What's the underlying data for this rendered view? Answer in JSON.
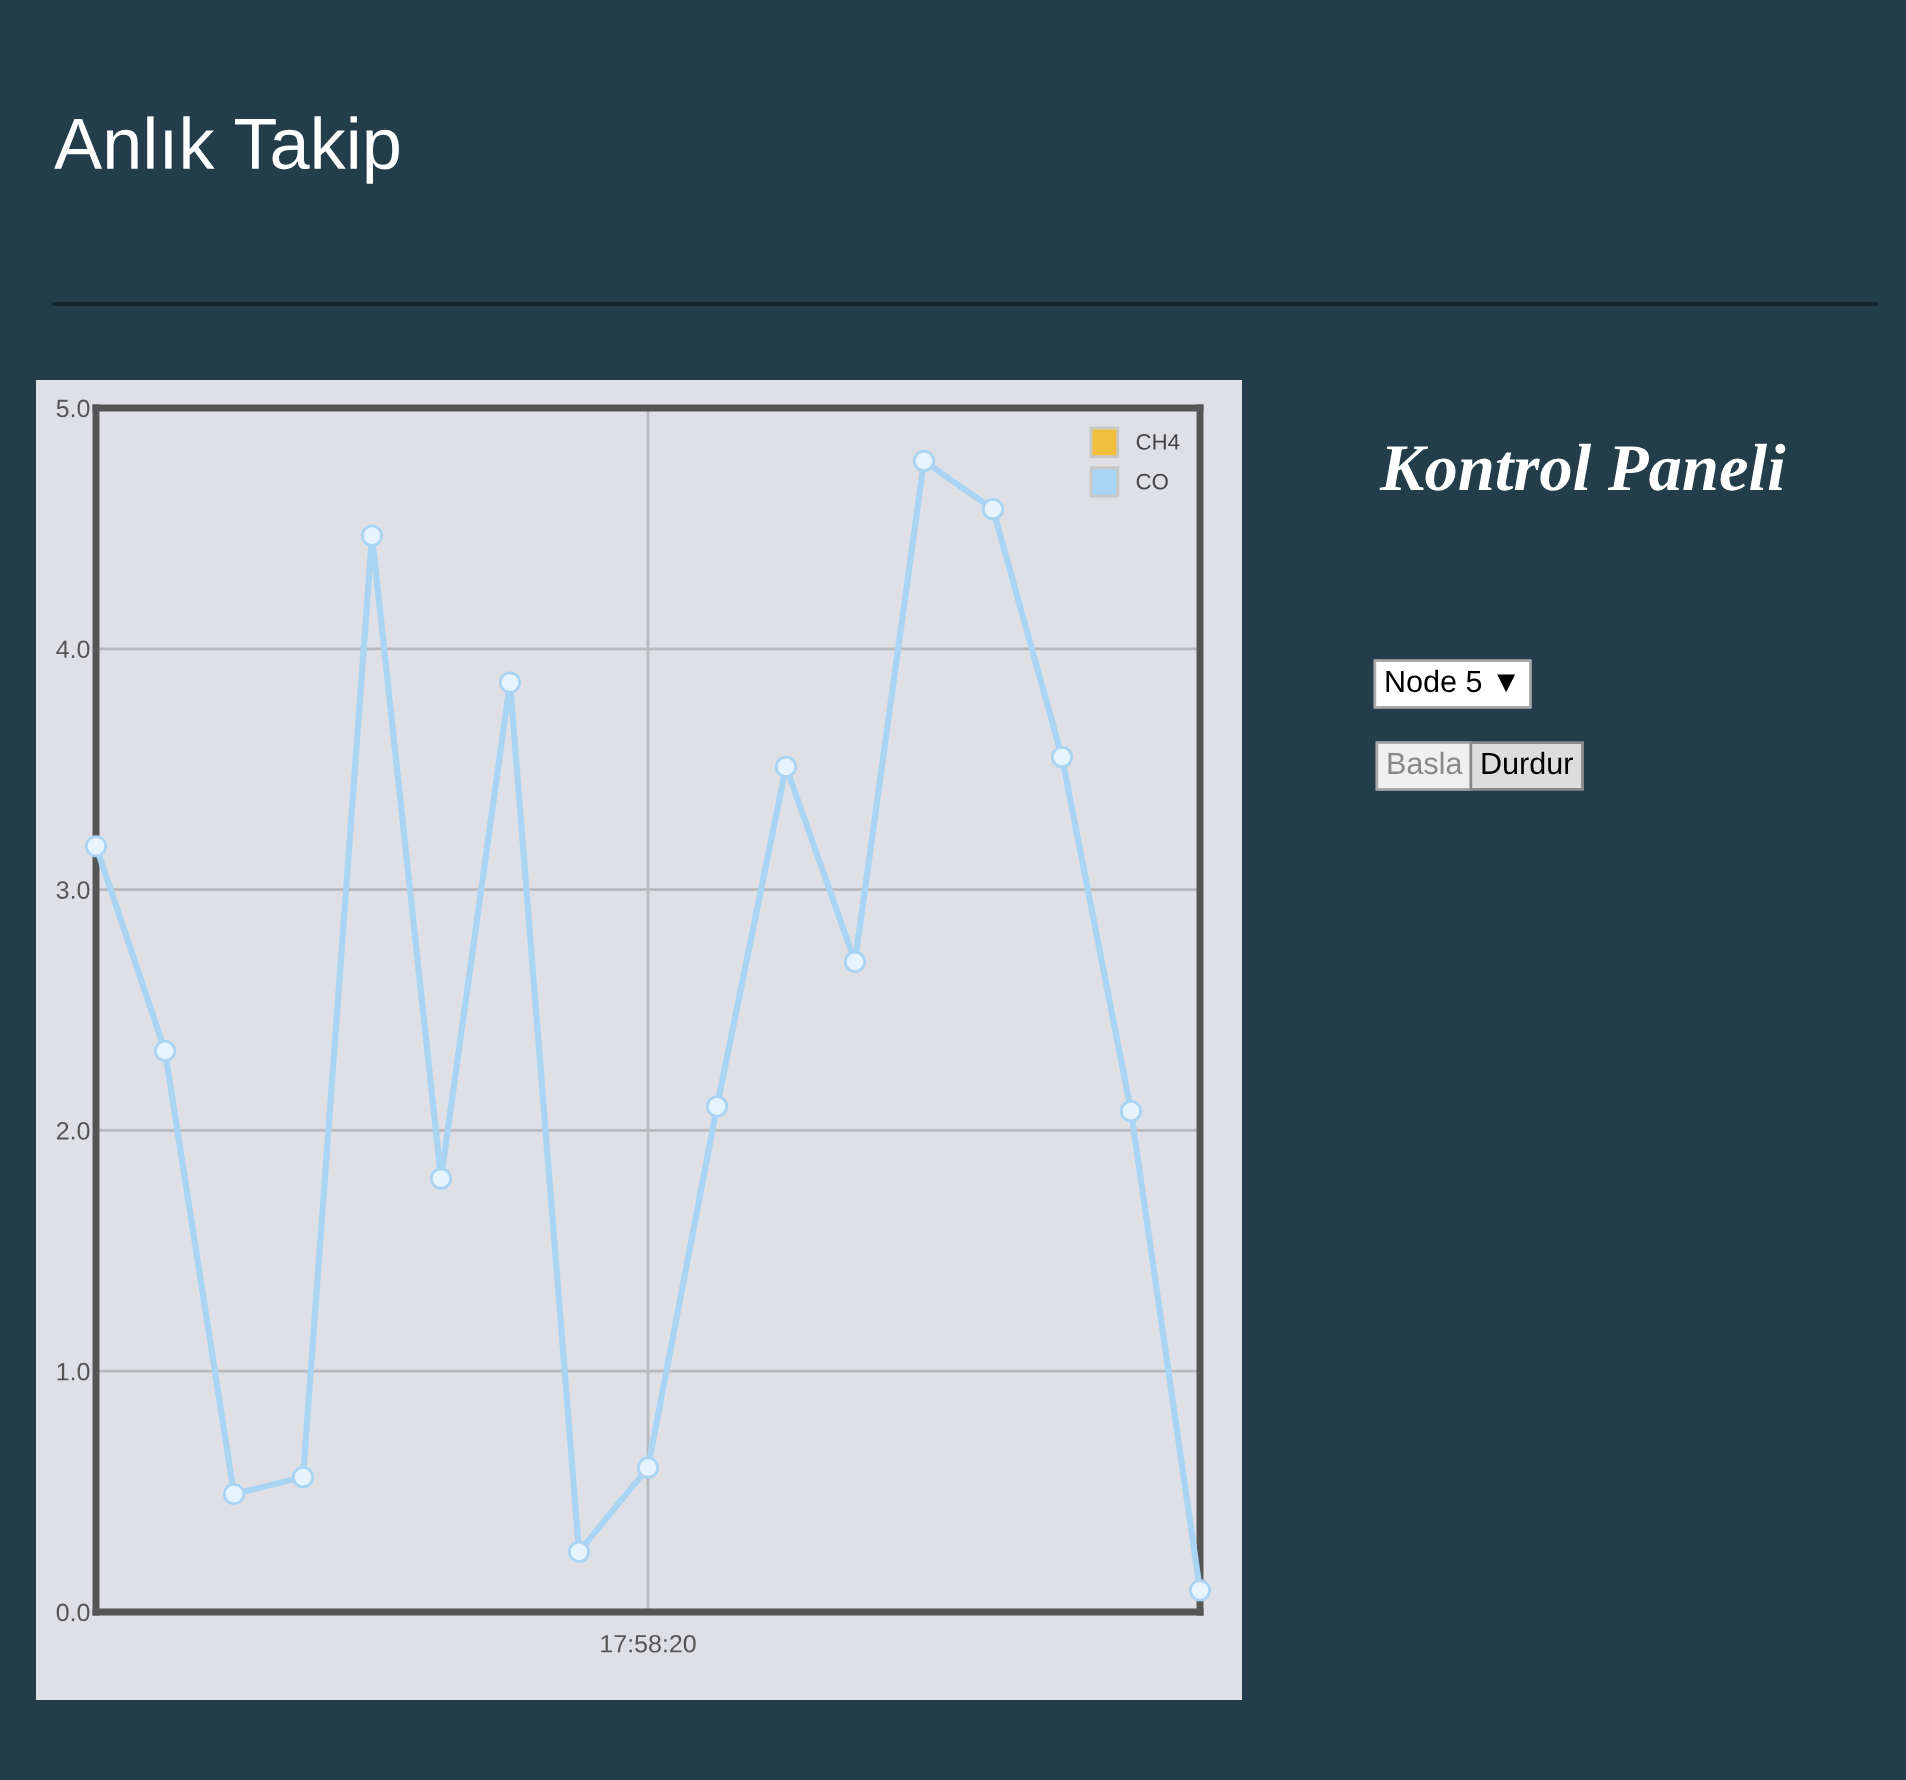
{
  "chart_data": [
    {
      "type": "line",
      "title": "Anlık Takip",
      "categories": [
        null,
        null,
        null,
        null,
        null,
        null,
        null,
        null,
        "17:58:20",
        null,
        null,
        null,
        null,
        null,
        null,
        null,
        null
      ],
      "series": [
        {
          "name": "CH4",
          "color": "#f0c03c",
          "values": [
            null,
            null,
            null,
            null,
            null,
            null,
            null,
            null,
            null,
            null,
            null,
            null,
            null,
            null,
            null,
            null,
            null
          ]
        },
        {
          "name": "CO",
          "color": "#a9d4f3",
          "values": [
            3.18,
            2.33,
            0.49,
            0.56,
            4.47,
            1.8,
            3.86,
            0.25,
            0.6,
            2.1,
            3.51,
            2.7,
            4.78,
            4.58,
            3.55,
            2.08,
            0.09
          ]
        }
      ],
      "ylim": [
        0,
        5
      ],
      "yticks": [
        {
          "value": 0,
          "label": "0.0"
        },
        {
          "value": 1,
          "label": "1.0"
        },
        {
          "value": 2,
          "label": "2.0"
        },
        {
          "value": 3,
          "label": "3.0"
        },
        {
          "value": 4,
          "label": "4.0"
        },
        {
          "value": 5,
          "label": "5.0"
        }
      ],
      "grid": true,
      "legend": "top right",
      "marker": "circle",
      "line_style": "solid"
    },
    {
      "type": "other",
      "title": "Kontrol Paneli",
      "annotations": [
        "Node 5 ▼",
        "Basla",
        "Durdur"
      ]
    }
  ]
}
